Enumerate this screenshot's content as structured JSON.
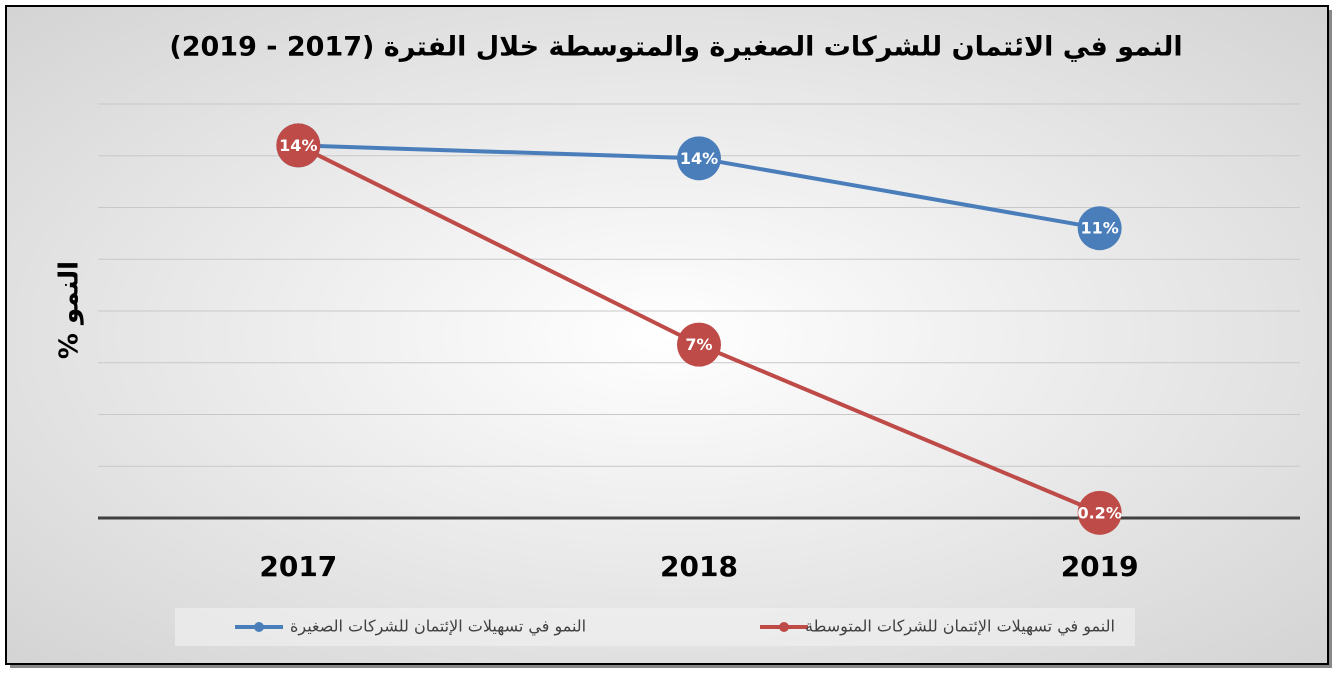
{
  "chart_data": {
    "type": "line",
    "title": "النمو في  الائتمان للشركات الصغيرة والمتوسطة خلال الفترة (2017 - 2019)",
    "y_label": "% النمو",
    "categories": [
      "2017",
      "2018",
      "2019"
    ],
    "series": [
      {
        "name": "النمو في تسهيلات الإئتمان للشركات الصغيرة",
        "color": "#4a7ebb",
        "values": [
          14.4,
          13.9,
          11.2
        ],
        "value_labels": [
          "14%",
          "14%",
          "11%"
        ]
      },
      {
        "name": "النمو في تسهيلات الإئتمان للشركات المتوسطة",
        "color": "#be4b48",
        "values": [
          14.4,
          6.7,
          0.2
        ],
        "value_labels": [
          "14%",
          "7%",
          "0.2%"
        ]
      }
    ],
    "ylim": [
      0,
      16
    ],
    "yticks": [
      0,
      2,
      4,
      6,
      8,
      10,
      12,
      14,
      16
    ],
    "grid": true
  }
}
